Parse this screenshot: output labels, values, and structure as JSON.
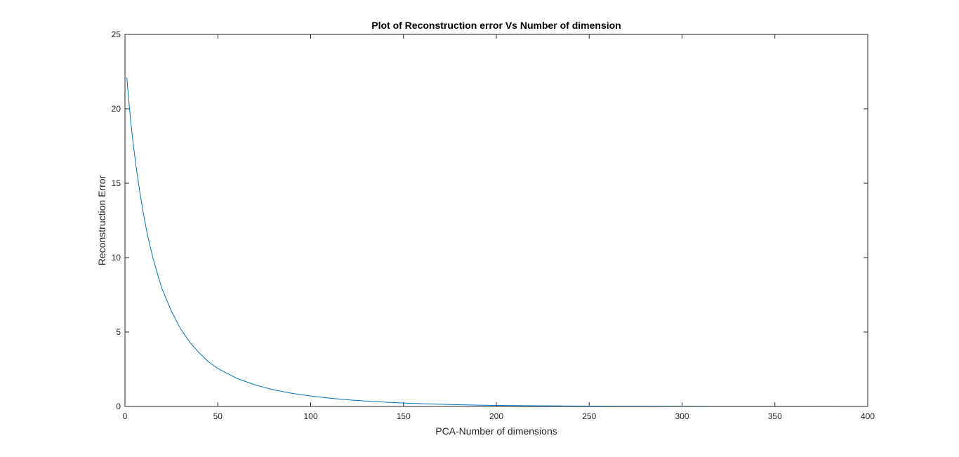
{
  "chart_data": {
    "type": "line",
    "title": "Plot of Reconstruction error Vs Number of dimension",
    "xlabel": "PCA-Number of dimensions",
    "ylabel": "Reconstruction Error",
    "xlim": [
      0,
      400
    ],
    "ylim": [
      0,
      25
    ],
    "xticks": [
      0,
      50,
      100,
      150,
      200,
      250,
      300,
      350,
      400
    ],
    "yticks": [
      0,
      5,
      10,
      15,
      20,
      25
    ],
    "grid": false,
    "legend": "none",
    "colors": {
      "line": "#0072bd",
      "axes": "#262626",
      "background": "#ffffff"
    },
    "series": [
      {
        "x": [
          1,
          2,
          3,
          4,
          5,
          6,
          8,
          10,
          12,
          15,
          18,
          20,
          25,
          30,
          35,
          40,
          45,
          50,
          60,
          70,
          80,
          90,
          100,
          110,
          120,
          130,
          140,
          150,
          160,
          175,
          190,
          200,
          220,
          250,
          280,
          300,
          350,
          400
        ],
        "values": [
          22.1,
          20.6,
          19.3,
          18.1,
          17.1,
          16.1,
          14.4,
          12.9,
          11.6,
          10.0,
          8.7,
          7.9,
          6.4,
          5.2,
          4.3,
          3.6,
          3.0,
          2.55,
          1.9,
          1.45,
          1.12,
          0.88,
          0.7,
          0.56,
          0.45,
          0.36,
          0.29,
          0.23,
          0.18,
          0.13,
          0.09,
          0.07,
          0.045,
          0.025,
          0.015,
          0.01,
          0.005,
          0.003
        ]
      }
    ]
  }
}
